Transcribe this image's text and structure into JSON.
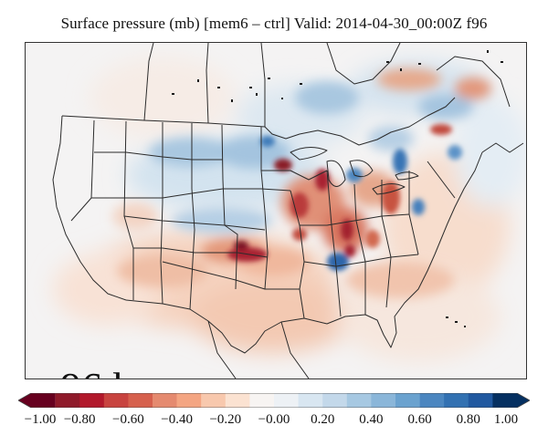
{
  "title": "Surface pressure (mb) [mem6 – ctrl] Valid: 2014-04-30_00:00Z f96",
  "lead_label": "96 hr",
  "colorbar": {
    "ticks": [
      "−1.00",
      "−0.80",
      "−0.60",
      "−0.40",
      "−0.20",
      "−0.00",
      "0.20",
      "0.40",
      "0.60",
      "0.80",
      "1.00"
    ],
    "colors": [
      "#67001f",
      "#8f1a2a",
      "#b2182b",
      "#c8433f",
      "#d6604d",
      "#e58a6f",
      "#f4a582",
      "#f8c8ad",
      "#fbe2d1",
      "#f7f4f2",
      "#edf1f5",
      "#d8e6f1",
      "#c3d8ea",
      "#a6c8e2",
      "#8ab6d9",
      "#6aa2cf",
      "#4b86c0",
      "#3271b2",
      "#2159a0",
      "#053061"
    ]
  }
}
